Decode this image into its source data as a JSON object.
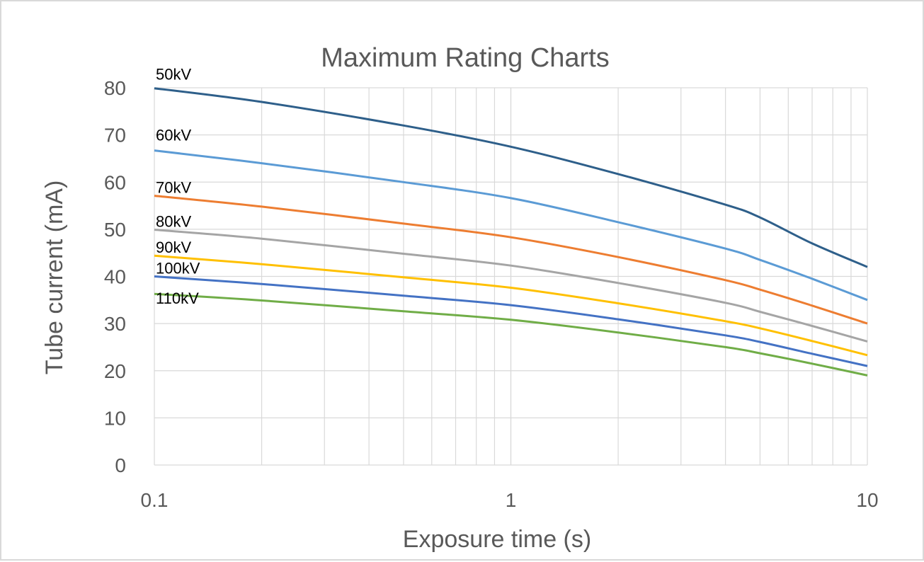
{
  "chart_data": {
    "type": "line",
    "title": "Maximum Rating Charts",
    "xlabel": "Exposure time (s)",
    "ylabel": "Tube current (mA)",
    "x_scale": "log",
    "xlim": [
      0.1,
      10
    ],
    "ylim": [
      0,
      80
    ],
    "x_ticks": [
      "0.1",
      "1",
      "10"
    ],
    "y_ticks": [
      "0",
      "10",
      "20",
      "30",
      "40",
      "50",
      "60",
      "70",
      "80"
    ],
    "grid": true,
    "legend": "none",
    "x": [
      0.1,
      0.2,
      0.5,
      1,
      2,
      4,
      5,
      7,
      10
    ],
    "series": [
      {
        "name": "50kV",
        "color": "#2e5f8a",
        "values": [
          79.9,
          77.0,
          72.0,
          67.5,
          61.7,
          55.2,
          52.5,
          47.0,
          42.0
        ]
      },
      {
        "name": "60kV",
        "color": "#5b9bd5",
        "values": [
          66.7,
          64.0,
          60.0,
          56.6,
          51.5,
          45.9,
          43.5,
          39.5,
          35.0
        ]
      },
      {
        "name": "70kV",
        "color": "#ed7d31",
        "values": [
          57.1,
          54.8,
          51.2,
          48.3,
          44.1,
          39.2,
          37.2,
          33.8,
          30.0
        ]
      },
      {
        "name": "80kV",
        "color": "#a5a5a5",
        "values": [
          49.9,
          48.0,
          44.8,
          42.3,
          38.6,
          34.4,
          32.5,
          29.5,
          26.2
        ]
      },
      {
        "name": "90kV",
        "color": "#ffc000",
        "values": [
          44.4,
          42.6,
          39.8,
          37.6,
          34.3,
          30.5,
          29.0,
          26.3,
          23.3
        ]
      },
      {
        "name": "100kV",
        "color": "#4472c4",
        "values": [
          40.0,
          38.4,
          35.9,
          33.9,
          30.9,
          27.5,
          26.1,
          23.6,
          21.0
        ]
      },
      {
        "name": "110kV",
        "color": "#70ad47",
        "values": [
          36.3,
          34.9,
          32.6,
          30.8,
          28.1,
          25.0,
          23.7,
          21.5,
          19.0
        ]
      }
    ]
  }
}
